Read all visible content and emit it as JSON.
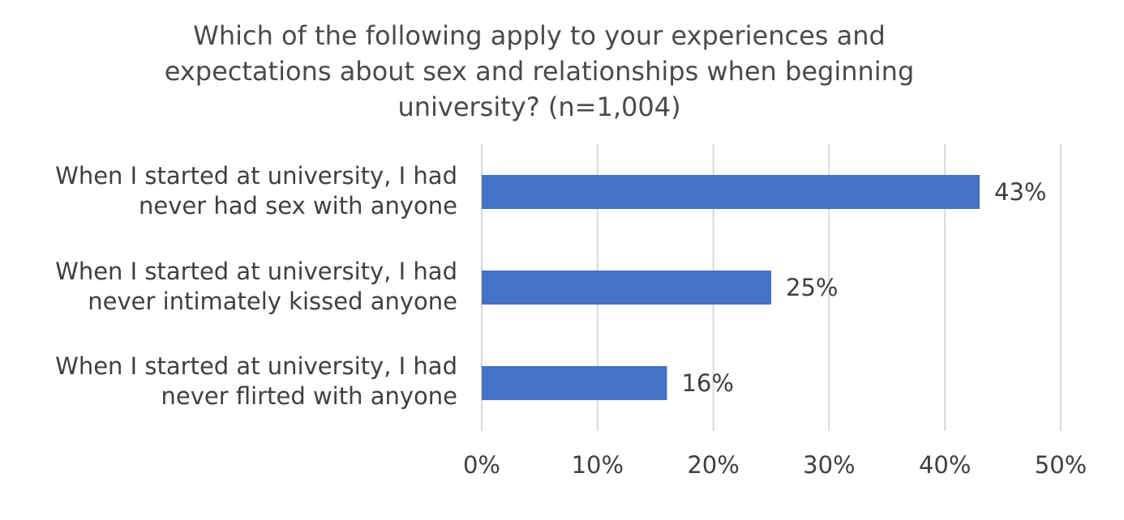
{
  "chart_data": {
    "type": "bar",
    "orientation": "horizontal",
    "title_lines": [
      "Which of the following apply to your experiences and",
      "expectations about sex and relationships when beginning",
      "university? (n=1,004)"
    ],
    "categories": [
      [
        "When I started at university, I had",
        "never had sex with anyone"
      ],
      [
        "When I started at university, I had",
        "never intimately kissed anyone"
      ],
      [
        "When I started at university, I had",
        "never flirted with anyone"
      ]
    ],
    "values": [
      43,
      25,
      16
    ],
    "data_labels": [
      "43%",
      "25%",
      "16%"
    ],
    "xlim": [
      0,
      50
    ],
    "xticks": [
      0,
      10,
      20,
      30,
      40,
      50
    ],
    "xtick_labels": [
      "0%",
      "10%",
      "20%",
      "30%",
      "40%",
      "50%"
    ],
    "grid": "vertical",
    "legend": "none",
    "bar_color": "#4472c4",
    "grid_color": "#d9d9d9"
  }
}
